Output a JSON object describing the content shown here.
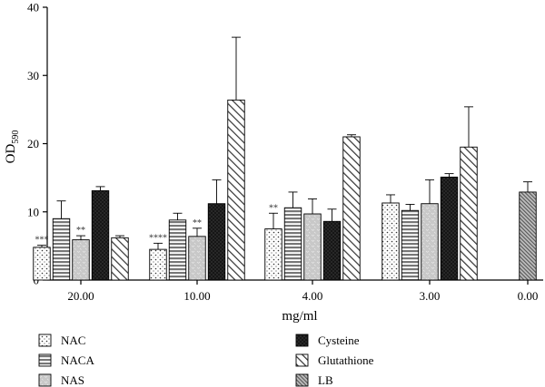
{
  "chart_data": {
    "type": "bar",
    "xlabel": "mg/ml",
    "ylabel": "OD",
    "ylabel_sub": "590",
    "ylim": [
      0,
      40
    ],
    "yticks": [
      0,
      10,
      20,
      30,
      40
    ],
    "groups": [
      {
        "label": "20.00",
        "bars": [
          {
            "series": "NAC",
            "value": 4.8,
            "err": 0.3,
            "sig": "***"
          },
          {
            "series": "NACA",
            "value": 9.0,
            "err": 2.6,
            "sig": ""
          },
          {
            "series": "NAS",
            "value": 5.9,
            "err": 0.6,
            "sig": "**"
          },
          {
            "series": "Cysteine",
            "value": 13.1,
            "err": 0.6,
            "sig": ""
          },
          {
            "series": "Glutathione",
            "value": 6.2,
            "err": 0.3,
            "sig": ""
          }
        ]
      },
      {
        "label": "10.00",
        "bars": [
          {
            "series": "NAC",
            "value": 4.5,
            "err": 0.9,
            "sig": "****"
          },
          {
            "series": "NACA",
            "value": 8.8,
            "err": 1.0,
            "sig": ""
          },
          {
            "series": "NAS",
            "value": 6.4,
            "err": 1.2,
            "sig": "**"
          },
          {
            "series": "Cysteine",
            "value": 11.2,
            "err": 3.5,
            "sig": ""
          },
          {
            "series": "Glutathione",
            "value": 26.4,
            "err": 9.2,
            "sig": ""
          }
        ]
      },
      {
        "label": "4.00",
        "bars": [
          {
            "series": "NAC",
            "value": 7.5,
            "err": 2.3,
            "sig": "**"
          },
          {
            "series": "NACA",
            "value": 10.6,
            "err": 2.3,
            "sig": ""
          },
          {
            "series": "NAS",
            "value": 9.7,
            "err": 2.2,
            "sig": ""
          },
          {
            "series": "Cysteine",
            "value": 8.6,
            "err": 1.8,
            "sig": ""
          },
          {
            "series": "Glutathione",
            "value": 21.0,
            "err": 0.3,
            "sig": ""
          }
        ]
      },
      {
        "label": "3.00",
        "bars": [
          {
            "series": "NAC",
            "value": 11.3,
            "err": 1.2,
            "sig": ""
          },
          {
            "series": "NACA",
            "value": 10.2,
            "err": 0.9,
            "sig": ""
          },
          {
            "series": "NAS",
            "value": 11.2,
            "err": 3.5,
            "sig": ""
          },
          {
            "series": "Cysteine",
            "value": 15.1,
            "err": 0.5,
            "sig": ""
          },
          {
            "series": "Glutathione",
            "value": 19.5,
            "err": 5.9,
            "sig": ""
          }
        ]
      },
      {
        "label": "0.00",
        "bars": [
          {
            "series": "LB",
            "value": 12.9,
            "err": 1.5,
            "sig": ""
          }
        ]
      }
    ],
    "legend": {
      "placement": "bottom",
      "items": [
        {
          "name": "NAC",
          "pattern": "dots"
        },
        {
          "name": "NACA",
          "pattern": "hlines"
        },
        {
          "name": "NAS",
          "pattern": "gray-marks"
        },
        {
          "name": "Cysteine",
          "pattern": "black-dots"
        },
        {
          "name": "Glutathione",
          "pattern": "diag-light"
        },
        {
          "name": "LB",
          "pattern": "diag-dense"
        }
      ]
    }
  }
}
